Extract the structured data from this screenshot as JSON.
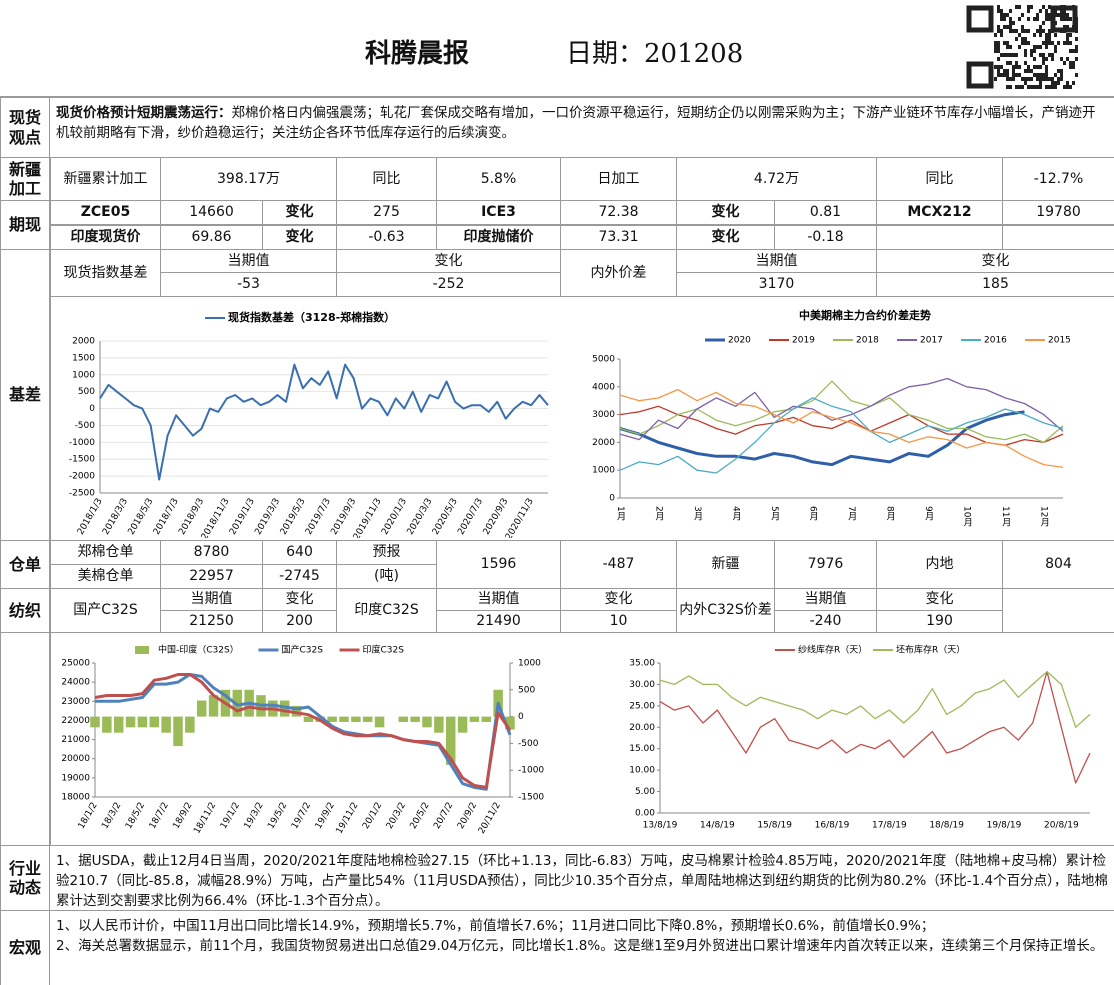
{
  "header": {
    "title": "科腾晨报",
    "date": "日期：201208"
  },
  "spot": {
    "label": "现货观点",
    "lead": "现货价格预计短期震荡运行：",
    "text": "郑棉价格日内偏强震荡；轧花厂套保成交略有增加，一口价资源平稳运行，短期纺企仍以刚需采购为主；下游产业链环节库存小幅增长，产销迹开机较前期略有下滑，纱价趋稳运行；关注纺企各环节低库存运行的后续演变。"
  },
  "xinjiang": {
    "label": "新疆加工",
    "cells": [
      "新疆累计加工",
      "398.17万",
      "同比",
      "5.8%",
      "日加工",
      "4.72万",
      "同比",
      "-12.7%"
    ]
  },
  "futures": {
    "label": "期现",
    "rows": [
      [
        "ZCE05",
        "14660",
        "变化",
        "275",
        "ICE3",
        "72.38",
        "变化",
        "0.81",
        "MCX212",
        "19780"
      ],
      [
        "印度现货价",
        "69.86",
        "变化",
        "-0.63",
        "印度抛储价",
        "73.31",
        "变化",
        "-0.18"
      ]
    ]
  },
  "basis": {
    "label": "基差",
    "header": [
      "现货指数基差",
      "当期值",
      "变化",
      "内外价差",
      "当期值",
      "变化"
    ],
    "values": [
      "-53",
      "-252",
      "3170",
      "185"
    ]
  },
  "warehouse": {
    "label": "仓单",
    "rows": [
      [
        "郑棉仓单",
        "8780",
        "640",
        "预报",
        "1596",
        "-487",
        "新疆",
        "7976",
        "内地",
        "804"
      ],
      [
        "美棉仓单",
        "22957",
        "-2745",
        "(吨)"
      ]
    ]
  },
  "textile": {
    "label": "纺织",
    "header": [
      "国产C32S",
      "当期值",
      "变化",
      "印度C32S",
      "当期值",
      "变化",
      "内外C32S价差",
      "当期值",
      "变化"
    ],
    "values": [
      "21250",
      "200",
      "21490",
      "10",
      "-240",
      "190"
    ]
  },
  "industry": {
    "label": "行业动态",
    "text": "1、据USDA，截止12月4日当周，2020/2021年度陆地棉检验27.15（环比+1.13，同比-6.83）万吨，皮马棉累计检验4.85万吨，2020/2021年度（陆地棉+皮马棉）累计检验210.7（同比-85.8，减幅28.9%）万吨，占产量比54%（11月USDA预估），同比少10.35个百分点，单周陆地棉达到纽约期货的比例为80.2%（环比-1.4个百分点），陆地棉累计达到交割要求比例为66.4%（环比-1.3个百分点）。"
  },
  "macro": {
    "label": "宏观",
    "lines": [
      "1、以人民币计价，中国11月出口同比增长14.9%，预期增长5.7%，前值增长7.6%；11月进口同比下降0.8%，预期增长0.6%，前值增长0.9%；",
      "2、海关总署数据显示，前11个月，我国货物贸易进出口总值29.04万亿元，同比增长1.8%。这是继1至9月外贸进出口累计增速年内首次转正以来，连续第三个月保持正增长。"
    ]
  },
  "chart_data": [
    {
      "type": "line",
      "grid": true,
      "categories": [
        "2018/1/3",
        null,
        null,
        "2018/3/3",
        null,
        null,
        "2018/5/3",
        null,
        null,
        "2018/7/3",
        null,
        null,
        "2018/9/3",
        null,
        null,
        "2018/11/3",
        null,
        null,
        "2019/1/3",
        null,
        null,
        "2019/3/3",
        null,
        null,
        "2019/5/3",
        null,
        null,
        "2019/7/3",
        null,
        null,
        "2019/9/3",
        null,
        null,
        "2019/11/3",
        null,
        null,
        "2020/1/3",
        null,
        null,
        "2020/3/3",
        null,
        null,
        "2020/5/3",
        null,
        null,
        "2020/7/3",
        null,
        null,
        "2020/9/3",
        null,
        null,
        "2020/11/3",
        null,
        null
      ],
      "series": [
        {
          "name": "现货指数基差（3128-郑棉指数）",
          "color": "#3a6fb0",
          "values": [
            300,
            700,
            500,
            300,
            100,
            0,
            -500,
            -2100,
            -800,
            -200,
            -500,
            -800,
            -600,
            0,
            -100,
            300,
            400,
            200,
            300,
            100,
            200,
            400,
            200,
            1300,
            600,
            900,
            700,
            1100,
            300,
            1300,
            900,
            0,
            300,
            200,
            -200,
            300,
            0,
            500,
            -100,
            400,
            300,
            800,
            200,
            0,
            100,
            100,
            -100,
            200,
            -300,
            0,
            200,
            100,
            400,
            100
          ]
        }
      ],
      "ylim": [
        -2500,
        2000
      ],
      "yticks": [
        -2500,
        -2000,
        -1500,
        -1000,
        -500,
        0,
        500,
        1000,
        1500,
        2000
      ]
    },
    {
      "type": "line",
      "title": "中美期棉主力合约价差走势",
      "grid": false,
      "categories": [
        "1月",
        null,
        "2月",
        null,
        "3月",
        null,
        "4月",
        null,
        "5月",
        null,
        "6月",
        null,
        "7月",
        null,
        "8月",
        null,
        "9月",
        null,
        "10月",
        null,
        "11月",
        null,
        "12月",
        null
      ],
      "series": [
        {
          "name": "2020",
          "color": "#2e5fa8",
          "values": [
            2500,
            2300,
            2000,
            1800,
            1600,
            1500,
            1500,
            1400,
            1600,
            1500,
            1300,
            1200,
            1500,
            1400,
            1300,
            1600,
            1500,
            1900,
            2500,
            2800,
            3000,
            3100,
            null,
            null
          ]
        },
        {
          "name": "2019",
          "color": "#c0392b",
          "values": [
            3000,
            3100,
            3300,
            3000,
            2800,
            2500,
            2300,
            2600,
            2700,
            2900,
            2600,
            2500,
            2800,
            2400,
            2700,
            3000,
            2600,
            2300,
            2300,
            2000,
            1900,
            2100,
            2000,
            2300
          ]
        },
        {
          "name": "2018",
          "color": "#9bbb59",
          "values": [
            2500,
            2300,
            2600,
            3000,
            3200,
            2800,
            2600,
            2800,
            3100,
            3200,
            3500,
            4200,
            3500,
            3300,
            3600,
            3000,
            2800,
            2500,
            2500,
            2200,
            2100,
            2300,
            2000,
            2600
          ]
        },
        {
          "name": "2017",
          "color": "#7f60a8",
          "values": [
            2300,
            2100,
            2800,
            2500,
            3200,
            3600,
            3300,
            3800,
            2900,
            3300,
            3200,
            2800,
            3000,
            3300,
            3700,
            4000,
            4100,
            4300,
            4000,
            3900,
            3600,
            3400,
            3000,
            2400
          ]
        },
        {
          "name": "2016",
          "color": "#4bacc6",
          "values": [
            1000,
            1300,
            1200,
            1500,
            1000,
            900,
            1400,
            2000,
            2700,
            3200,
            3600,
            3300,
            3100,
            2400,
            2000,
            2300,
            2600,
            2400,
            2700,
            2900,
            3200,
            3000,
            2700,
            2500
          ]
        },
        {
          "name": "2015",
          "color": "#f79646",
          "values": [
            3700,
            3500,
            3600,
            3900,
            3500,
            3800,
            3400,
            3300,
            3000,
            2700,
            3100,
            2900,
            2700,
            2400,
            2300,
            2000,
            2200,
            2100,
            1800,
            2000,
            1900,
            1500,
            1200,
            1100
          ]
        }
      ],
      "ylim": [
        0,
        5000
      ],
      "yticks": [
        0,
        1000,
        2000,
        3000,
        4000,
        5000
      ]
    },
    {
      "type": "combo",
      "grid": false,
      "categories": [
        "18/1/2",
        null,
        "18/3/2",
        null,
        "18/5/2",
        null,
        "18/7/2",
        null,
        "18/9/2",
        null,
        "18/11/2",
        null,
        "19/1/2",
        null,
        "19/3/2",
        null,
        "19/5/2",
        null,
        "19/7/2",
        null,
        "19/9/2",
        null,
        "19/11/2",
        null,
        "20/1/2",
        null,
        "20/3/2",
        null,
        "20/5/2",
        null,
        "20/7/2",
        null,
        "20/9/2",
        null,
        "20/11/2",
        null
      ],
      "series": [
        {
          "name": "中国-印度（C32S）",
          "color": "#9bbb59",
          "axis": "y2",
          "values": [
            -200,
            -300,
            -300,
            -200,
            -200,
            -200,
            -300,
            -550,
            -300,
            300,
            400,
            500,
            500,
            500,
            400,
            300,
            300,
            200,
            -100,
            -100,
            -100,
            -100,
            -100,
            -100,
            -200,
            0,
            -100,
            -100,
            -200,
            -300,
            -900,
            -300,
            -100,
            -100,
            500,
            -240
          ]
        },
        {
          "name": "国产C32S",
          "color": "#4f81bd",
          "values": [
            23000,
            23000,
            23000,
            23100,
            23200,
            23900,
            23900,
            24000,
            24400,
            24300,
            23700,
            23300,
            22800,
            22900,
            22800,
            22800,
            22700,
            22600,
            22700,
            22200,
            21700,
            21400,
            21300,
            21200,
            21200,
            21200,
            21000,
            20900,
            20800,
            20700,
            19700,
            18700,
            18500,
            18400,
            22900,
            21250
          ]
        },
        {
          "name": "印度C32S",
          "color": "#c0504d",
          "values": [
            23200,
            23300,
            23300,
            23300,
            23400,
            24100,
            24200,
            24400,
            24400,
            24000,
            23300,
            22900,
            22500,
            22700,
            22600,
            22600,
            22500,
            22400,
            22300,
            22000,
            21600,
            21300,
            21200,
            21200,
            21300,
            21200,
            21000,
            20900,
            20900,
            20800,
            20000,
            19000,
            18600,
            18500,
            22400,
            21490
          ]
        }
      ],
      "ylim": [
        18000,
        25000
      ],
      "yticks": [
        18000,
        19000,
        20000,
        21000,
        22000,
        23000,
        24000,
        25000
      ],
      "y2lim": [
        -1500,
        1000
      ],
      "y2ticks": [
        -1500,
        -1000,
        -500,
        0,
        500,
        1000
      ]
    },
    {
      "type": "line",
      "grid": false,
      "categories": [
        "13/8/19",
        null,
        null,
        null,
        "14/8/19",
        null,
        null,
        null,
        "15/8/19",
        null,
        null,
        null,
        "16/8/19",
        null,
        null,
        null,
        "17/8/19",
        null,
        null,
        null,
        "18/8/19",
        null,
        null,
        null,
        "19/8/19",
        null,
        null,
        null,
        "20/8/19",
        null,
        null
      ],
      "series": [
        {
          "name": "纱线库存R（天）",
          "color": "#c0504d",
          "values": [
            26,
            24,
            25,
            21,
            24,
            19,
            14,
            20,
            22,
            17,
            16,
            15,
            17,
            14,
            16,
            15,
            17,
            13,
            16,
            19,
            14,
            15,
            17,
            19,
            20,
            17,
            21,
            33,
            20,
            7,
            14
          ]
        },
        {
          "name": "坯布库存R（天）",
          "color": "#9bbb59",
          "values": [
            31,
            30,
            32,
            30,
            30,
            27,
            25,
            27,
            26,
            25,
            24,
            22,
            24,
            23,
            25,
            22,
            24,
            21,
            24,
            29,
            23,
            25,
            28,
            29,
            31,
            27,
            30,
            33,
            30,
            20,
            23
          ]
        }
      ],
      "ylim": [
        0,
        35
      ],
      "yticks": [
        {
          "value": 0,
          "label": "0.00"
        },
        {
          "value": 5,
          "label": "5.00"
        },
        {
          "value": 10,
          "label": "10.00"
        },
        {
          "value": 15,
          "label": "15.00"
        },
        {
          "value": 20,
          "label": "20.00"
        },
        {
          "value": 25,
          "label": "25.00"
        },
        {
          "value": 30,
          "label": "30.00"
        },
        {
          "value": 35,
          "label": "35.00"
        }
      ]
    }
  ]
}
